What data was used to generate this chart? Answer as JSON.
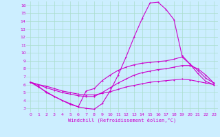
{
  "background_color": "#cceeff",
  "grid_color": "#aaddcc",
  "line_color": "#cc00cc",
  "xlabel": "Windchill (Refroidissement éolien,°C)",
  "xlabel_color": "#cc00cc",
  "ylim": [
    2.5,
    16.5
  ],
  "xlim": [
    -0.5,
    23.5
  ],
  "yticks": [
    3,
    4,
    5,
    6,
    7,
    8,
    9,
    10,
    11,
    12,
    13,
    14,
    15,
    16
  ],
  "xticks": [
    0,
    1,
    2,
    3,
    4,
    5,
    6,
    7,
    8,
    9,
    10,
    11,
    12,
    13,
    14,
    15,
    16,
    17,
    18,
    19,
    20,
    21,
    22,
    23
  ],
  "line1_x": [
    0,
    1,
    2,
    3,
    4,
    5,
    6,
    7,
    8,
    9,
    10,
    11,
    12,
    13,
    14,
    15,
    16,
    17,
    18,
    19,
    20,
    21,
    22,
    23
  ],
  "line1_y": [
    6.3,
    5.7,
    5.1,
    4.5,
    4.0,
    3.5,
    3.2,
    3.0,
    2.9,
    3.6,
    5.2,
    7.2,
    9.5,
    12.0,
    14.3,
    16.3,
    16.4,
    15.5,
    14.2,
    9.7,
    8.6,
    7.4,
    6.4,
    6.0
  ],
  "line2_x": [
    0,
    1,
    2,
    3,
    4,
    5,
    6,
    7,
    8,
    9,
    10,
    11,
    12,
    13,
    14,
    15,
    16,
    17,
    18,
    19,
    20,
    21,
    22,
    23
  ],
  "line2_y": [
    6.3,
    5.8,
    5.0,
    4.5,
    4.0,
    3.6,
    3.2,
    5.2,
    5.5,
    6.5,
    7.2,
    7.8,
    8.2,
    8.5,
    8.7,
    8.8,
    8.9,
    9.0,
    9.2,
    9.5,
    8.6,
    7.8,
    6.8,
    6.2
  ],
  "line3_x": [
    0,
    1,
    2,
    3,
    4,
    5,
    6,
    7,
    8,
    9,
    10,
    11,
    12,
    13,
    14,
    15,
    16,
    17,
    18,
    19,
    20,
    21,
    22,
    23
  ],
  "line3_y": [
    6.3,
    6.0,
    5.6,
    5.3,
    5.0,
    4.8,
    4.6,
    4.5,
    4.5,
    5.0,
    5.6,
    6.2,
    6.7,
    7.2,
    7.5,
    7.7,
    7.9,
    8.0,
    8.2,
    8.4,
    8.4,
    8.0,
    7.2,
    6.2
  ],
  "line4_x": [
    0,
    1,
    2,
    3,
    4,
    5,
    6,
    7,
    8,
    9,
    10,
    11,
    12,
    13,
    14,
    15,
    16,
    17,
    18,
    19,
    20,
    21,
    22,
    23
  ],
  "line4_y": [
    6.3,
    6.0,
    5.8,
    5.5,
    5.2,
    5.0,
    4.8,
    4.7,
    4.7,
    4.9,
    5.1,
    5.4,
    5.7,
    5.9,
    6.1,
    6.3,
    6.4,
    6.5,
    6.6,
    6.7,
    6.6,
    6.4,
    6.2,
    6.0
  ]
}
